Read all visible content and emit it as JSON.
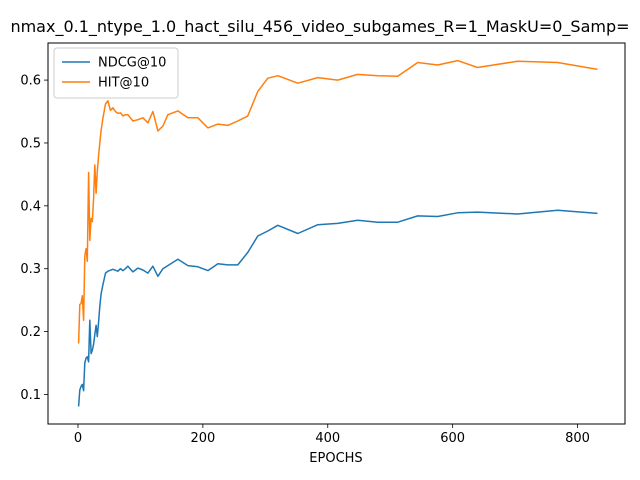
{
  "chart_data": {
    "type": "line",
    "title": "nmax_0.1_ntype_1.0_hact_silu_456_video_subgames_R=1_MaskU=0_Samp=",
    "xlabel": "EPOCHS",
    "ylabel": "",
    "xlim": [
      -48,
      876
    ],
    "ylim": [
      0.053,
      0.659
    ],
    "xticks": [
      0,
      200,
      400,
      600,
      800
    ],
    "yticks": [
      0.1,
      0.2,
      0.3,
      0.4,
      0.5,
      0.6
    ],
    "grid": false,
    "legend_position": "upper-left",
    "series": [
      {
        "name": "NDCG@10",
        "color": "#1f77b4",
        "x": [
          1,
          3,
          5,
          7,
          9,
          11,
          13,
          15,
          17,
          19,
          21,
          23,
          25,
          27,
          29,
          31,
          33,
          35,
          37,
          40,
          44,
          48,
          56,
          64,
          68,
          72,
          76,
          80,
          88,
          96,
          104,
          112,
          120,
          128,
          136,
          160,
          176,
          192,
          208,
          224,
          240,
          256,
          272,
          288,
          304,
          320,
          352,
          384,
          416,
          448,
          480,
          512,
          544,
          576,
          608,
          640,
          704,
          768,
          832
        ],
        "y": [
          0.081,
          0.107,
          0.113,
          0.116,
          0.106,
          0.15,
          0.158,
          0.16,
          0.152,
          0.218,
          0.165,
          0.17,
          0.18,
          0.195,
          0.21,
          0.192,
          0.215,
          0.24,
          0.26,
          0.275,
          0.293,
          0.296,
          0.299,
          0.296,
          0.3,
          0.297,
          0.3,
          0.304,
          0.295,
          0.301,
          0.298,
          0.293,
          0.304,
          0.288,
          0.3,
          0.315,
          0.305,
          0.303,
          0.297,
          0.308,
          0.306,
          0.306,
          0.326,
          0.352,
          0.36,
          0.369,
          0.356,
          0.37,
          0.372,
          0.377,
          0.374,
          0.374,
          0.384,
          0.383,
          0.389,
          0.39,
          0.387,
          0.393,
          0.388
        ]
      },
      {
        "name": "HIT@10",
        "color": "#ff7f0e",
        "x": [
          1,
          3,
          5,
          7,
          9,
          11,
          13,
          15,
          17,
          19,
          21,
          23,
          25,
          27,
          29,
          31,
          33,
          35,
          37,
          40,
          44,
          48,
          52,
          56,
          60,
          64,
          68,
          72,
          76,
          80,
          88,
          96,
          104,
          112,
          120,
          128,
          136,
          144,
          160,
          176,
          192,
          208,
          224,
          240,
          256,
          272,
          288,
          304,
          320,
          352,
          384,
          416,
          448,
          480,
          512,
          544,
          576,
          608,
          640,
          704,
          768,
          832
        ],
        "y": [
          0.181,
          0.243,
          0.245,
          0.257,
          0.218,
          0.32,
          0.332,
          0.312,
          0.453,
          0.345,
          0.38,
          0.375,
          0.412,
          0.465,
          0.42,
          0.455,
          0.48,
          0.5,
          0.52,
          0.54,
          0.562,
          0.567,
          0.552,
          0.556,
          0.55,
          0.547,
          0.548,
          0.543,
          0.545,
          0.545,
          0.535,
          0.537,
          0.54,
          0.532,
          0.55,
          0.519,
          0.527,
          0.545,
          0.551,
          0.54,
          0.54,
          0.524,
          0.53,
          0.528,
          0.535,
          0.543,
          0.582,
          0.603,
          0.607,
          0.595,
          0.604,
          0.6,
          0.609,
          0.607,
          0.606,
          0.628,
          0.624,
          0.631,
          0.62,
          0.63,
          0.628,
          0.617
        ]
      }
    ]
  }
}
